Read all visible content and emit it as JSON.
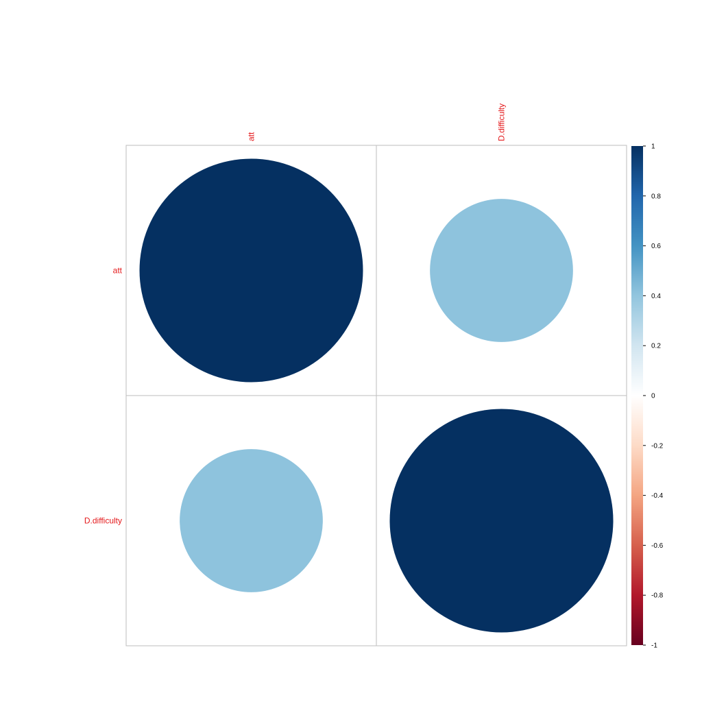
{
  "chart_data": {
    "type": "heatmap",
    "subtype": "correlation-circles",
    "variables": [
      "att",
      "D.difficulty"
    ],
    "matrix": [
      [
        1,
        0.41
      ],
      [
        0.41,
        1
      ]
    ],
    "colorbar": {
      "range": [
        -1,
        1
      ],
      "ticks": [
        "1",
        "0.8",
        "0.6",
        "0.4",
        "0.2",
        "0",
        "-0.2",
        "-0.4",
        "-0.6",
        "-0.8",
        "-1"
      ],
      "colors": [
        "#67001F",
        "#B2182B",
        "#D6604D",
        "#F4A582",
        "#FDDBC7",
        "#FFFFFF",
        "#D1E5F0",
        "#92C5DE",
        "#4393C3",
        "#2166AC",
        "#053061"
      ]
    },
    "label_color": "#E41A1C",
    "grid": true,
    "legend_position": "right"
  }
}
